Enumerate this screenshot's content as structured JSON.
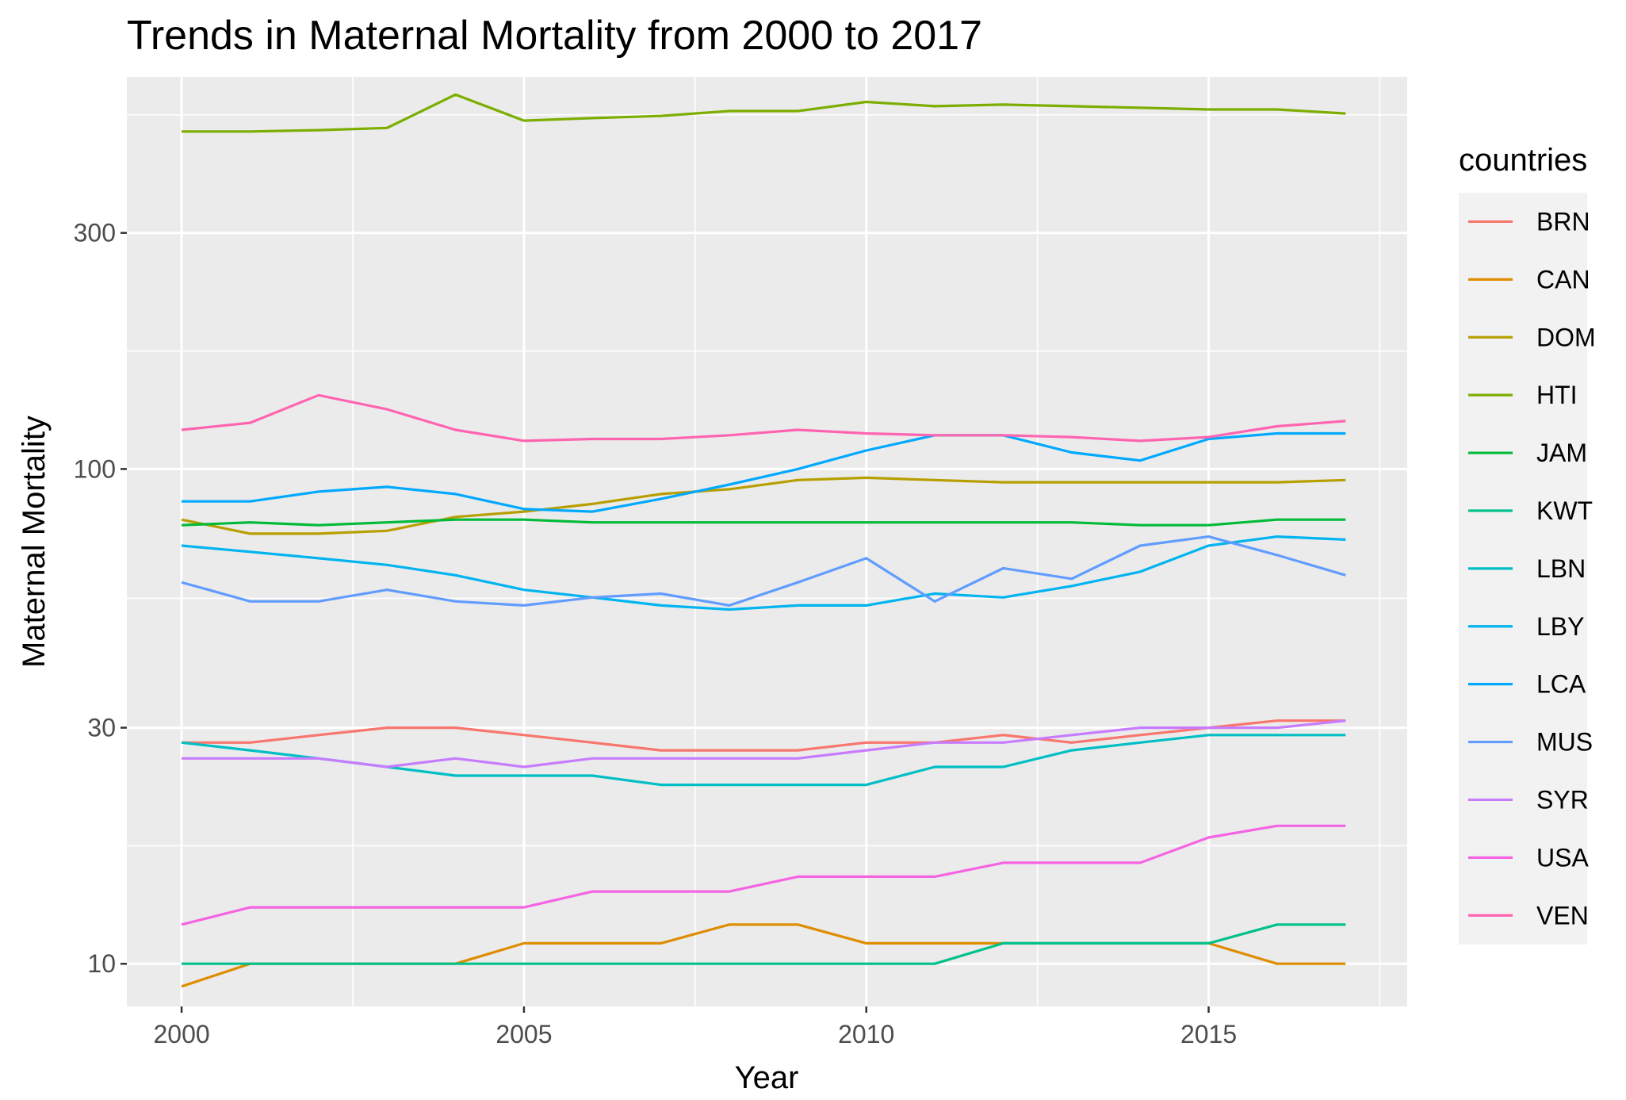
{
  "chart_data": {
    "type": "line",
    "title": "Trends in Maternal Mortality from 2000 to 2017",
    "xlabel": "Year",
    "ylabel": "Maternal Mortality",
    "y_scale": "log10",
    "xlim": [
      1999.2,
      2017.9
    ],
    "ylim": [
      8.2,
      620
    ],
    "x_ticks": [
      2000,
      2005,
      2010,
      2015
    ],
    "y_ticks": [
      10,
      30,
      100,
      300
    ],
    "grid": true,
    "legend_title": "countries",
    "legend_position": "right",
    "x": [
      2000,
      2001,
      2002,
      2003,
      2004,
      2005,
      2006,
      2007,
      2008,
      2009,
      2010,
      2011,
      2012,
      2013,
      2014,
      2015,
      2016,
      2017
    ],
    "series": [
      {
        "name": "BRN",
        "color": "#F8766D",
        "values": [
          28,
          28,
          29,
          30,
          30,
          29,
          28,
          27,
          27,
          27,
          28,
          28,
          29,
          28,
          29,
          30,
          31,
          31
        ]
      },
      {
        "name": "CAN",
        "color": "#DE8C00",
        "values": [
          9,
          10,
          10,
          10,
          10,
          11,
          11,
          11,
          12,
          12,
          11,
          11,
          11,
          11,
          11,
          11,
          10,
          10
        ]
      },
      {
        "name": "DOM",
        "color": "#B79F00",
        "values": [
          79,
          74,
          74,
          75,
          80,
          82,
          85,
          89,
          91,
          95,
          96,
          95,
          94,
          94,
          94,
          94,
          94,
          95
        ]
      },
      {
        "name": "HTI",
        "color": "#7CAE00",
        "values": [
          481,
          481,
          484,
          489,
          571,
          506,
          512,
          517,
          529,
          529,
          552,
          541,
          545,
          541,
          537,
          533,
          533,
          523
        ]
      },
      {
        "name": "JAM",
        "color": "#00BA38",
        "values": [
          77,
          78,
          77,
          78,
          79,
          79,
          78,
          78,
          78,
          78,
          78,
          78,
          78,
          78,
          77,
          77,
          79,
          79
        ]
      },
      {
        "name": "KWT",
        "color": "#00C08B",
        "values": [
          10,
          10,
          10,
          10,
          10,
          10,
          10,
          10,
          10,
          10,
          10,
          10,
          11,
          11,
          11,
          11,
          12,
          12
        ]
      },
      {
        "name": "LBN",
        "color": "#00BFC4",
        "values": [
          28,
          27,
          26,
          25,
          24,
          24,
          24,
          23,
          23,
          23,
          23,
          25,
          25,
          27,
          28,
          29,
          29,
          29
        ]
      },
      {
        "name": "LBY",
        "color": "#00B4F0",
        "values": [
          70,
          68,
          66,
          64,
          61,
          57,
          55,
          53,
          52,
          53,
          53,
          56,
          55,
          58,
          62,
          70,
          73,
          72
        ]
      },
      {
        "name": "LCA",
        "color": "#00A9FF",
        "values": [
          86,
          86,
          90,
          92,
          89,
          83,
          82,
          87,
          93,
          100,
          109,
          117,
          117,
          108,
          104,
          115,
          118,
          118
        ]
      },
      {
        "name": "MUS",
        "color": "#619CFF",
        "values": [
          59,
          54,
          54,
          57,
          54,
          53,
          55,
          56,
          53,
          59,
          66,
          54,
          63,
          60,
          70,
          73,
          67,
          61
        ]
      },
      {
        "name": "SYR",
        "color": "#C77CFF",
        "values": [
          26,
          26,
          26,
          25,
          26,
          25,
          26,
          26,
          26,
          26,
          27,
          28,
          28,
          29,
          30,
          30,
          30,
          31
        ]
      },
      {
        "name": "USA",
        "color": "#F564E3",
        "values": [
          12,
          13,
          13,
          13,
          13,
          13,
          14,
          14,
          14,
          15,
          15,
          15,
          16,
          16,
          16,
          18,
          19,
          19
        ]
      },
      {
        "name": "VEN",
        "color": "#FF64B0",
        "values": [
          120,
          124,
          141,
          132,
          120,
          114,
          115,
          115,
          117,
          120,
          118,
          117,
          117,
          116,
          114,
          116,
          122,
          125
        ]
      }
    ]
  }
}
